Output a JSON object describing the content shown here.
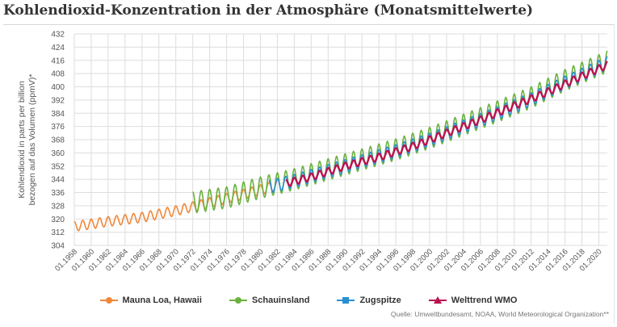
{
  "page": {
    "title": "Kohlendioxid-Konzentration in der Atmosphäre (Monatsmittelwerte)",
    "source": "Quelle: Umweltbundesamt, NOAA, World Meteorological Organization**"
  },
  "colors": {
    "mauna_loa": "#f0883a",
    "schauinsland": "#6ab23f",
    "zugspitze": "#2a8fd0",
    "welttrend": "#b8134f",
    "grid": "#dddddd",
    "axis_text": "#555555"
  },
  "legend": [
    {
      "name": "Mauna Loa, Hawaii",
      "marker": "circle",
      "color": "#f0883a"
    },
    {
      "name": "Schauinsland",
      "marker": "circle",
      "color": "#6ab23f"
    },
    {
      "name": "Zugspitze",
      "marker": "square",
      "color": "#2a8fd0"
    },
    {
      "name": "Welttrend WMO",
      "marker": "triangle",
      "color": "#b8134f"
    }
  ],
  "chart_data": {
    "type": "line",
    "title": "Kohlendioxid-Konzentration in der Atmosphäre (Monatsmittelwerte)",
    "xlabel": "",
    "ylabel": "Kohlendioxid in parts per billion bezogen auf das Volumen (ppmV)*",
    "ylim": [
      304,
      432
    ],
    "yticks": [
      304,
      312,
      320,
      328,
      336,
      344,
      352,
      360,
      368,
      376,
      384,
      392,
      400,
      408,
      416,
      424,
      432
    ],
    "xlim": [
      1958.0,
      2021.0
    ],
    "xticks": [
      "01.1958",
      "01.1960",
      "01.1962",
      "01.1964",
      "01.1966",
      "01.1968",
      "01.1970",
      "01.1972",
      "01.1974",
      "01.1976",
      "01.1978",
      "01.1980",
      "01.1982",
      "01.1984",
      "01.1986",
      "01.1988",
      "01.1990",
      "01.1992",
      "01.1994",
      "01.1996",
      "01.1998",
      "01.2000",
      "01.2002",
      "01.2004",
      "01.2006",
      "01.2008",
      "01.2010",
      "01.2012",
      "01.2014",
      "01.2016",
      "01.2018",
      "01.2020"
    ],
    "grid": true,
    "legend_position": "bottom",
    "series": [
      {
        "name": "Mauna Loa, Hawaii",
        "color": "#f0883a",
        "period": [
          1958.0,
          1982.0
        ],
        "annual_mean_start": [
          1958,
          316
        ],
        "annual_mean_points": [
          [
            1958,
            315.5
          ],
          [
            1962,
            318.5
          ],
          [
            1966,
            321.0
          ],
          [
            1970,
            325.0
          ],
          [
            1974,
            330.0
          ],
          [
            1978,
            335.0
          ],
          [
            1982,
            340.5
          ]
        ],
        "seasonal_amplitude": 3.0
      },
      {
        "name": "Schauinsland",
        "color": "#6ab23f",
        "period": [
          1972.0,
          2021.0
        ],
        "annual_mean_points": [
          [
            1972,
            330.0
          ],
          [
            1976,
            333.0
          ],
          [
            1980,
            339.0
          ],
          [
            1984,
            344.0
          ],
          [
            1988,
            350.0
          ],
          [
            1992,
            356.0
          ],
          [
            1996,
            362.0
          ],
          [
            2000,
            369.0
          ],
          [
            2004,
            377.0
          ],
          [
            2008,
            385.0
          ],
          [
            2012,
            393.5
          ],
          [
            2016,
            404.0
          ],
          [
            2020,
            413.0
          ]
        ],
        "seasonal_amplitude": 6.5
      },
      {
        "name": "Zugspitze",
        "color": "#2a8fd0",
        "period": [
          1981.0,
          2021.0
        ],
        "annual_mean_points": [
          [
            1981,
            339.5
          ],
          [
            1984,
            343.0
          ],
          [
            1988,
            349.0
          ],
          [
            1992,
            355.0
          ],
          [
            1996,
            361.0
          ],
          [
            2000,
            368.0
          ],
          [
            2004,
            376.0
          ],
          [
            2008,
            384.0
          ],
          [
            2012,
            392.5
          ],
          [
            2016,
            402.5
          ],
          [
            2020,
            412.0
          ]
        ],
        "seasonal_amplitude": 4.0
      },
      {
        "name": "Welttrend WMO",
        "color": "#b8134f",
        "period": [
          1983.0,
          2021.0
        ],
        "annual_mean_points": [
          [
            1983,
            341.5
          ],
          [
            1986,
            345.5
          ],
          [
            1990,
            352.0
          ],
          [
            1994,
            357.5
          ],
          [
            1998,
            364.0
          ],
          [
            2002,
            372.0
          ],
          [
            2006,
            380.0
          ],
          [
            2010,
            388.5
          ],
          [
            2014,
            397.0
          ],
          [
            2018,
            406.5
          ],
          [
            2020,
            411.0
          ]
        ],
        "seasonal_amplitude": 2.2
      }
    ]
  }
}
